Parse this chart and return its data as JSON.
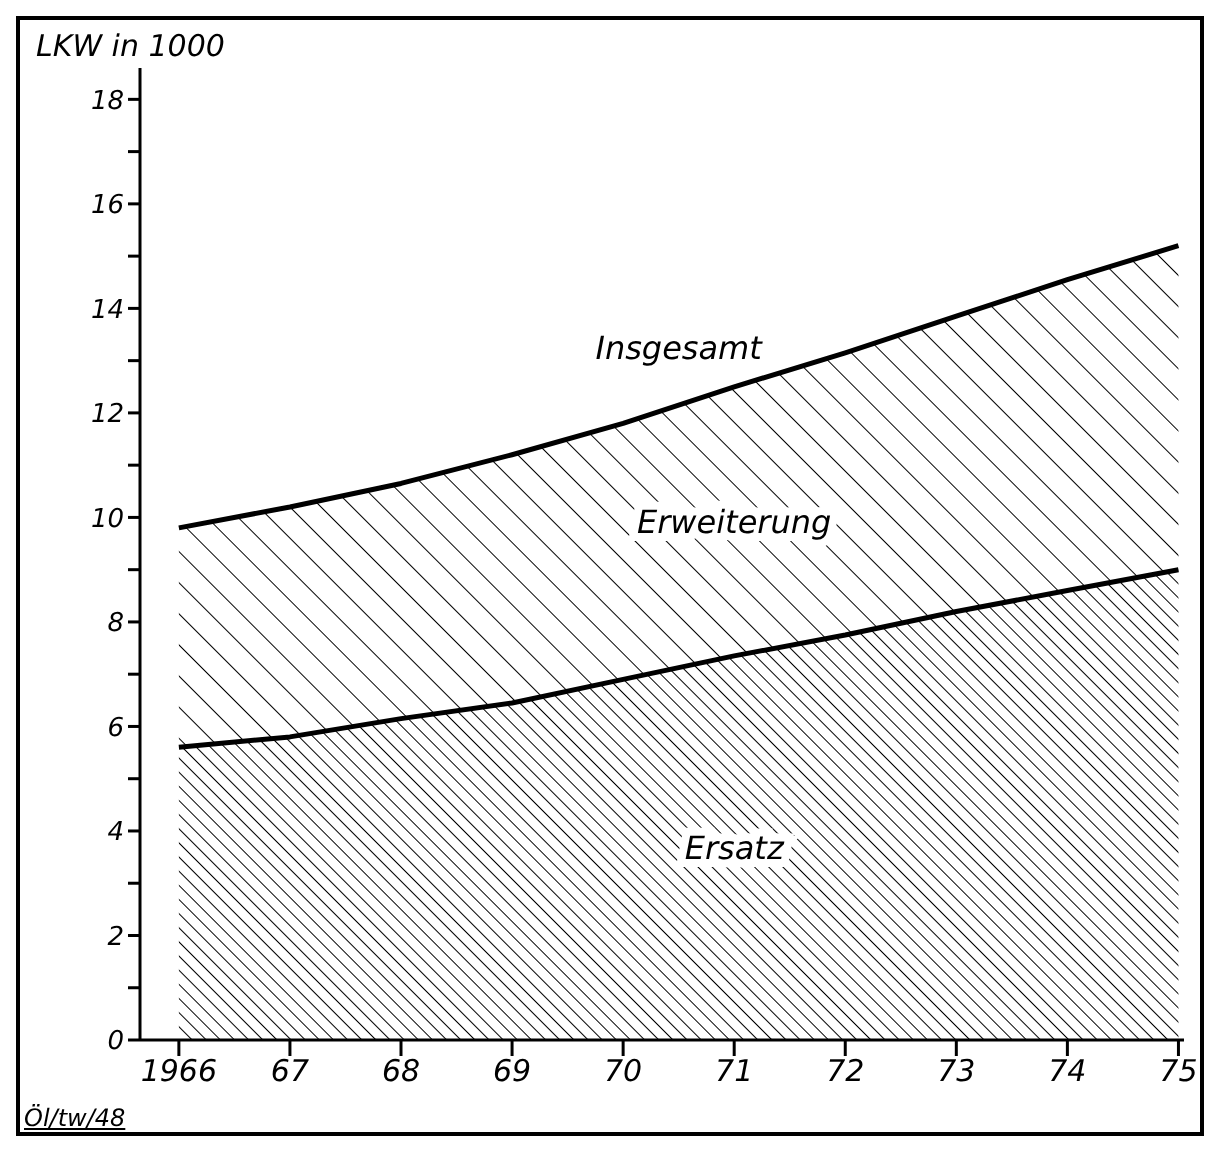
{
  "chart_data": {
    "type": "area",
    "stacked": true,
    "ylabel": "LKW in 1000",
    "categories": [
      "1966",
      "67",
      "68",
      "69",
      "70",
      "71",
      "72",
      "73",
      "74",
      "75"
    ],
    "series": [
      {
        "name": "Ersatz",
        "color": "#000000",
        "values": [
          5.6,
          5.8,
          6.15,
          6.45,
          6.9,
          7.35,
          7.75,
          8.2,
          8.6,
          9.0
        ]
      },
      {
        "name": "Erweiterung",
        "color": "#000000",
        "values": [
          4.2,
          4.4,
          4.5,
          4.75,
          4.9,
          5.15,
          5.4,
          5.65,
          5.95,
          6.2
        ]
      }
    ],
    "ylim": [
      0,
      18.6
    ],
    "yticks": [
      0,
      {
        "value": 1,
        "label": null
      },
      2,
      {
        "value": 3,
        "label": null
      },
      4,
      {
        "value": 5,
        "label": null
      },
      6,
      {
        "value": 7,
        "label": null
      },
      8,
      {
        "value": 9,
        "label": null
      },
      10,
      {
        "value": 11,
        "label": null
      },
      12,
      {
        "value": 13,
        "label": null
      },
      14,
      {
        "value": 15,
        "label": null
      },
      16,
      {
        "value": 17,
        "label": null
      },
      18
    ],
    "annotations": [
      {
        "text": "Insgesamt",
        "x": "71",
        "y": 12.5
      },
      "Öl/tw/48"
    ],
    "grid": false,
    "legend": false
  }
}
